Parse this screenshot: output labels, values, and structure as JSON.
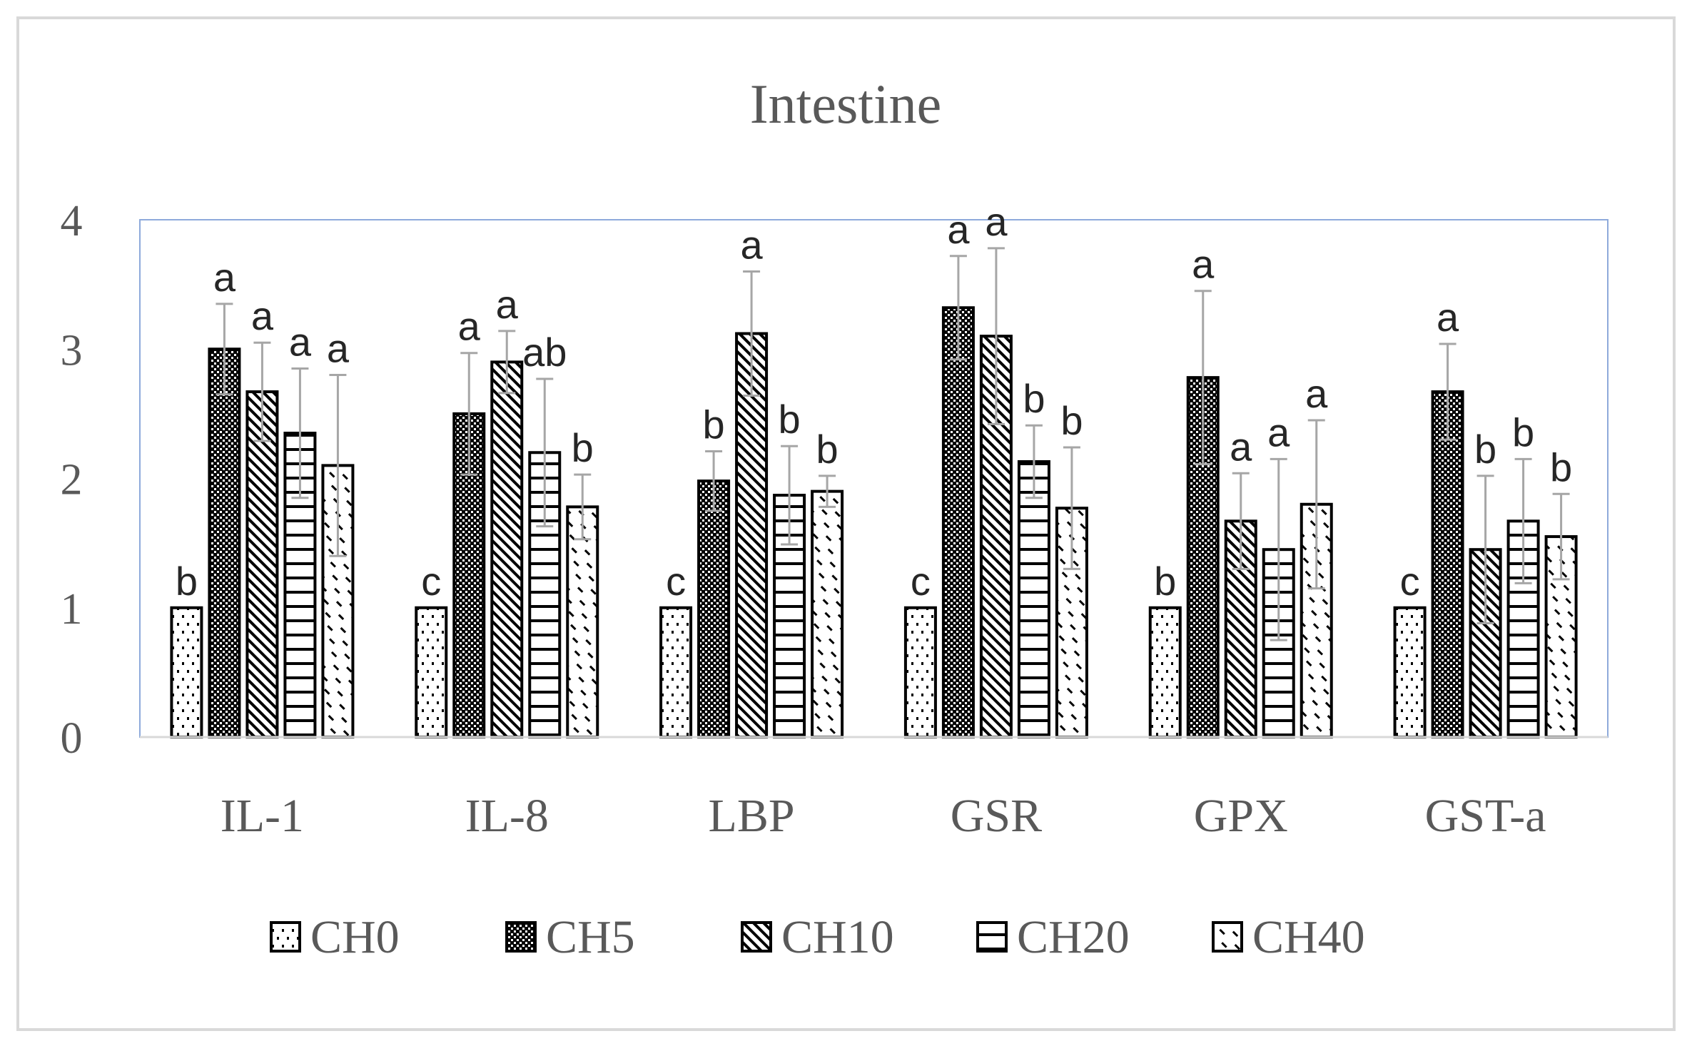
{
  "chart_data": {
    "type": "bar",
    "title": "Intestine",
    "xlabel": "",
    "ylabel": "",
    "ylim": [
      0,
      4
    ],
    "yticks": [
      0,
      1,
      2,
      3,
      4
    ],
    "categories": [
      "IL-1",
      "IL-8",
      "LBP",
      "GSR",
      "GPX",
      "GST-a"
    ],
    "legend_position": "bottom",
    "series": [
      {
        "name": "CH0",
        "pattern": "dots",
        "values": [
          1,
          1,
          1,
          1,
          1,
          1
        ],
        "errors": [
          0,
          0,
          0,
          0,
          0,
          0
        ],
        "labels": [
          "b",
          "c",
          "c",
          "c",
          "b",
          "c"
        ]
      },
      {
        "name": "CH5",
        "pattern": "checker",
        "values": [
          3.0,
          2.5,
          1.98,
          3.32,
          2.78,
          2.67
        ],
        "errors": [
          0.35,
          0.47,
          0.23,
          0.4,
          0.67,
          0.37
        ],
        "labels": [
          "a",
          "a",
          "b",
          "a",
          "a",
          "a"
        ]
      },
      {
        "name": "CH10",
        "pattern": "diagonal",
        "values": [
          2.67,
          2.9,
          3.12,
          3.1,
          1.67,
          1.45
        ],
        "errors": [
          0.38,
          0.24,
          0.48,
          0.68,
          0.37,
          0.57
        ],
        "labels": [
          "a",
          "a",
          "a",
          "a",
          "a",
          "b"
        ]
      },
      {
        "name": "CH20",
        "pattern": "horizontal",
        "values": [
          2.35,
          2.2,
          1.87,
          2.13,
          1.45,
          1.67
        ],
        "errors": [
          0.5,
          0.57,
          0.38,
          0.28,
          0.7,
          0.48
        ],
        "labels": [
          "a",
          "ab",
          "b",
          "b",
          "a",
          "b"
        ]
      },
      {
        "name": "CH40",
        "pattern": "sparse",
        "values": [
          2.1,
          1.78,
          1.9,
          1.77,
          1.8,
          1.55
        ],
        "errors": [
          0.7,
          0.25,
          0.12,
          0.47,
          0.65,
          0.33
        ],
        "labels": [
          "a",
          "b",
          "b",
          "b",
          "a",
          "b"
        ]
      }
    ]
  },
  "colors": {
    "bar_stroke": "#000000",
    "error_bar": "#a6a6a6",
    "plot_border": "#8eaadb",
    "outer_border": "#d9d9d9",
    "text": "#595959"
  }
}
